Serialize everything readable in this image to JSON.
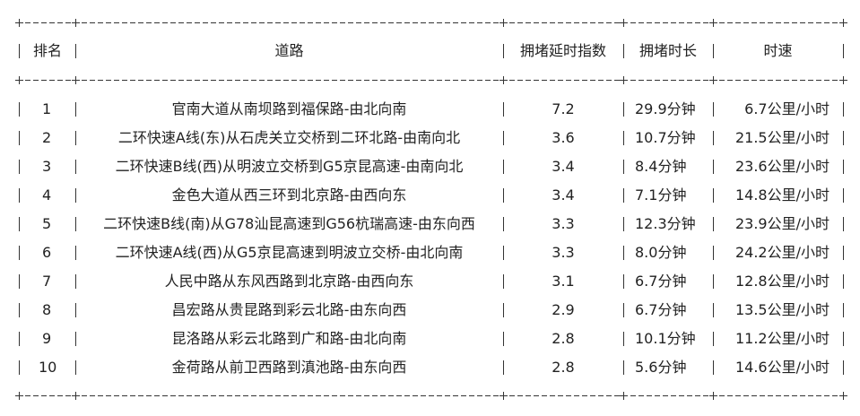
{
  "table": {
    "headers": {
      "rank": "排名",
      "road": "道路",
      "index": "拥堵延时指数",
      "duration": "拥堵时长",
      "speed": "时速"
    },
    "rows": [
      {
        "rank": "1",
        "road": "官南大道从南坝路到福保路-由北向南",
        "index": "7.2",
        "duration": "29.9分钟",
        "speed": "6.7公里/小时"
      },
      {
        "rank": "2",
        "road": "二环快速A线(东)从石虎关立交桥到二环北路-由南向北",
        "index": "3.6",
        "duration": "10.7分钟",
        "speed": "21.5公里/小时"
      },
      {
        "rank": "3",
        "road": "二环快速B线(西)从明波立交桥到G5京昆高速-由南向北",
        "index": "3.4",
        "duration": "8.4分钟",
        "speed": "23.6公里/小时"
      },
      {
        "rank": "4",
        "road": "金色大道从西三环到北京路-由西向东",
        "index": "3.4",
        "duration": "7.1分钟",
        "speed": "14.8公里/小时"
      },
      {
        "rank": "5",
        "road": "二环快速B线(南)从G78汕昆高速到G56杭瑞高速-由东向西",
        "index": "3.3",
        "duration": "12.3分钟",
        "speed": "23.9公里/小时"
      },
      {
        "rank": "6",
        "road": "二环快速A线(西)从G5京昆高速到明波立交桥-由北向南",
        "index": "3.3",
        "duration": "8.0分钟",
        "speed": "24.2公里/小时"
      },
      {
        "rank": "7",
        "road": "人民中路从东风西路到北京路-由西向东",
        "index": "3.1",
        "duration": "6.7分钟",
        "speed": "12.8公里/小时"
      },
      {
        "rank": "8",
        "road": "昌宏路从贵昆路到彩云北路-由东向西",
        "index": "2.9",
        "duration": "6.7分钟",
        "speed": "13.5公里/小时"
      },
      {
        "rank": "9",
        "road": "昆洛路从彩云北路到广和路-由北向南",
        "index": "2.8",
        "duration": "10.1分钟",
        "speed": "11.2公里/小时"
      },
      {
        "rank": "10",
        "road": "金荷路从前卫西路到滇池路-由东向西",
        "index": "2.8",
        "duration": "5.6分钟",
        "speed": "14.6公里/小时"
      }
    ]
  }
}
